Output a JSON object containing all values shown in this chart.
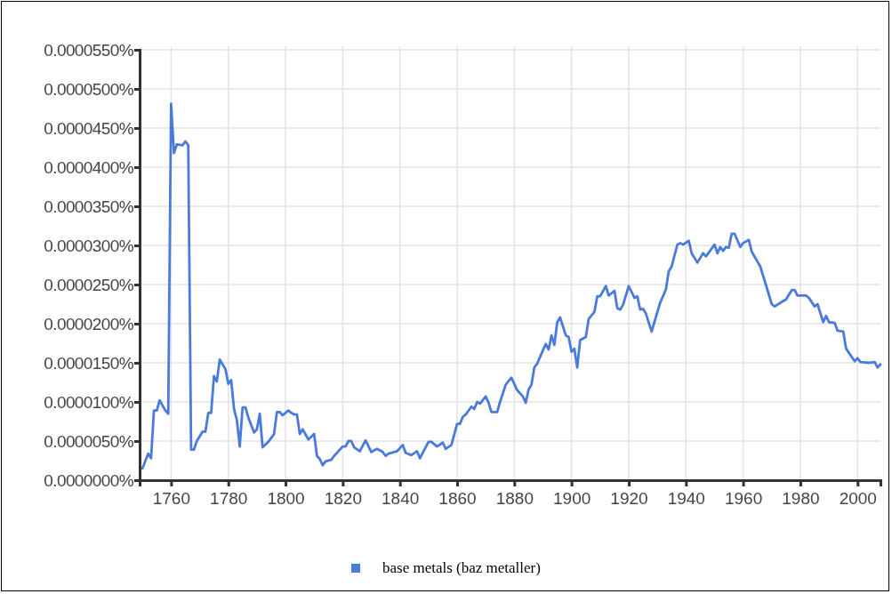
{
  "chart_data": {
    "type": "line",
    "legend": "bottom",
    "grid": true,
    "marker": "none",
    "line_style": "solid",
    "xlim": [
      1749,
      2008
    ],
    "xticks": [
      1760,
      1780,
      1800,
      1820,
      1840,
      1860,
      1880,
      1900,
      1920,
      1940,
      1960,
      1980,
      2000
    ],
    "ylim": [
      0,
      5.5e-05
    ],
    "yticks": [
      {
        "value": 0,
        "label": "0.0000000%"
      },
      {
        "value": 5e-06,
        "label": "0.0000050%"
      },
      {
        "value": 1e-05,
        "label": "0.0000100%"
      },
      {
        "value": 1.5e-05,
        "label": "0.0000150%"
      },
      {
        "value": 2e-05,
        "label": "0.0000200%"
      },
      {
        "value": 2.5e-05,
        "label": "0.0000250%"
      },
      {
        "value": 3e-05,
        "label": "0.0000300%"
      },
      {
        "value": 3.5e-05,
        "label": "0.0000350%"
      },
      {
        "value": 4e-05,
        "label": "0.0000400%"
      },
      {
        "value": 4.5e-05,
        "label": "0.0000450%"
      },
      {
        "value": 5e-05,
        "label": "0.0000500%"
      },
      {
        "value": 5.5e-05,
        "label": "0.0000550%"
      }
    ],
    "x": [
      1750,
      1752,
      1753,
      1754,
      1755,
      1756,
      1758,
      1759,
      1760,
      1761,
      1762,
      1764,
      1765,
      1766,
      1767,
      1768,
      1769,
      1771,
      1772,
      1773,
      1774,
      1775,
      1776,
      1777,
      1779,
      1780,
      1781,
      1782,
      1783,
      1784,
      1785,
      1786,
      1787,
      1789,
      1790,
      1791,
      1792,
      1794,
      1796,
      1797,
      1798,
      1799,
      1801,
      1802,
      1803,
      1804,
      1805,
      1806,
      1808,
      1810,
      1811,
      1812,
      1813,
      1814,
      1816,
      1817,
      1818,
      1820,
      1821,
      1822,
      1823,
      1824,
      1826,
      1828,
      1830,
      1832,
      1834,
      1835,
      1836,
      1838,
      1839,
      1841,
      1842,
      1844,
      1846,
      1847,
      1850,
      1851,
      1853,
      1855,
      1856,
      1858,
      1860,
      1861,
      1862,
      1863,
      1865,
      1866,
      1867,
      1868,
      1870,
      1871,
      1872,
      1874,
      1875,
      1877,
      1879,
      1881,
      1883,
      1884,
      1885,
      1886,
      1887,
      1888,
      1890,
      1891,
      1892,
      1893,
      1894,
      1895,
      1896,
      1898,
      1899,
      1900,
      1901,
      1902,
      1903,
      1905,
      1906,
      1908,
      1909,
      1910,
      1912,
      1913,
      1915,
      1916,
      1917,
      1918,
      1920,
      1922,
      1923,
      1924,
      1925,
      1926,
      1928,
      1931,
      1932,
      1933,
      1934,
      1935,
      1937,
      1938,
      1939,
      1941,
      1942,
      1944,
      1946,
      1947,
      1950,
      1951,
      1952,
      1953,
      1954,
      1955,
      1956,
      1957,
      1959,
      1960,
      1962,
      1963,
      1966,
      1970,
      1971,
      1974,
      1975,
      1977,
      1978,
      1979,
      1982,
      1983,
      1985,
      1986,
      1988,
      1989,
      1990,
      1992,
      1993,
      1995,
      1996,
      1999,
      2000,
      2001,
      2004,
      2006,
      2007,
      2008
    ],
    "series": [
      {
        "name": "base metals (baz metaller)",
        "color": "#4a7bdc",
        "values": [
          1.5e-06,
          3.4e-06,
          2.8e-06,
          8.9e-06,
          8.9e-06,
          1.02e-05,
          8.9e-06,
          8.5e-06,
          4.81e-05,
          4.18e-05,
          4.29e-05,
          4.28e-05,
          4.33e-05,
          4.28e-05,
          3.9e-06,
          3.9e-06,
          5e-06,
          6.2e-06,
          6.2e-06,
          8.6e-06,
          8.6e-06,
          1.33e-05,
          1.26e-05,
          1.54e-05,
          1.42e-05,
          1.23e-05,
          1.28e-05,
          9.1e-06,
          7.7e-06,
          4.3e-06,
          9.3e-06,
          9.3e-06,
          8e-06,
          6.1e-06,
          6.5e-06,
          8.5e-06,
          4.2e-06,
          4.9e-06,
          5.9e-06,
          8.7e-06,
          8.7e-06,
          8.3e-06,
          8.9e-06,
          8.6e-06,
          8.4e-06,
          8.4e-06,
          5.9e-06,
          6.5e-06,
          5.2e-06,
          5.9e-06,
          3.1e-06,
          2.7e-06,
          1.9e-06,
          2.4e-06,
          2.6e-06,
          3.1e-06,
          3.5e-06,
          4.3e-06,
          4.3e-06,
          5e-06,
          5e-06,
          4.2e-06,
          3.7e-06,
          5.1e-06,
          3.6e-06,
          4e-06,
          3.6e-06,
          3.1e-06,
          3.4e-06,
          3.6e-06,
          3.7e-06,
          4.5e-06,
          3.5e-06,
          3.2e-06,
          3.7e-06,
          2.8e-06,
          4.9e-06,
          4.9e-06,
          4.3e-06,
          4.8e-06,
          4e-06,
          4.5e-06,
          7.2e-06,
          7.2e-06,
          8.1e-06,
          8.4e-06,
          9.4e-06,
          9.1e-06,
          1e-05,
          9.8e-06,
          1.07e-05,
          9.9e-06,
          8.7e-06,
          8.7e-06,
          1e-05,
          1.22e-05,
          1.31e-05,
          1.15e-05,
          1.07e-05,
          9.9e-06,
          1.16e-05,
          1.22e-05,
          1.44e-05,
          1.49e-05,
          1.66e-05,
          1.74e-05,
          1.67e-05,
          1.85e-05,
          1.73e-05,
          2.02e-05,
          2.08e-05,
          1.85e-05,
          1.83e-05,
          1.64e-05,
          1.68e-05,
          1.44e-05,
          1.79e-05,
          1.83e-05,
          2.06e-05,
          2.15e-05,
          2.35e-05,
          2.35e-05,
          2.48e-05,
          2.36e-05,
          2.42e-05,
          2.2e-05,
          2.18e-05,
          2.24e-05,
          2.48e-05,
          2.33e-05,
          2.35e-05,
          2.18e-05,
          2.19e-05,
          2.13e-05,
          1.9e-05,
          2.27e-05,
          2.35e-05,
          2.44e-05,
          2.67e-05,
          2.73e-05,
          3.01e-05,
          3.03e-05,
          3.01e-05,
          3.06e-05,
          2.9e-05,
          2.78e-05,
          2.9e-05,
          2.86e-05,
          3.01e-05,
          2.9e-05,
          2.98e-05,
          2.93e-05,
          2.98e-05,
          2.97e-05,
          3.15e-05,
          3.15e-05,
          2.98e-05,
          3.03e-05,
          3.07e-05,
          2.92e-05,
          2.73e-05,
          2.25e-05,
          2.22e-05,
          2.29e-05,
          2.31e-05,
          2.43e-05,
          2.43e-05,
          2.36e-05,
          2.36e-05,
          2.33e-05,
          2.22e-05,
          2.25e-05,
          2.02e-05,
          2.1e-05,
          2.02e-05,
          2.01e-05,
          1.91e-05,
          1.9e-05,
          1.68e-05,
          1.52e-05,
          1.56e-05,
          1.51e-05,
          1.5e-05,
          1.51e-05,
          1.44e-05,
          1.48e-05
        ]
      }
    ]
  }
}
